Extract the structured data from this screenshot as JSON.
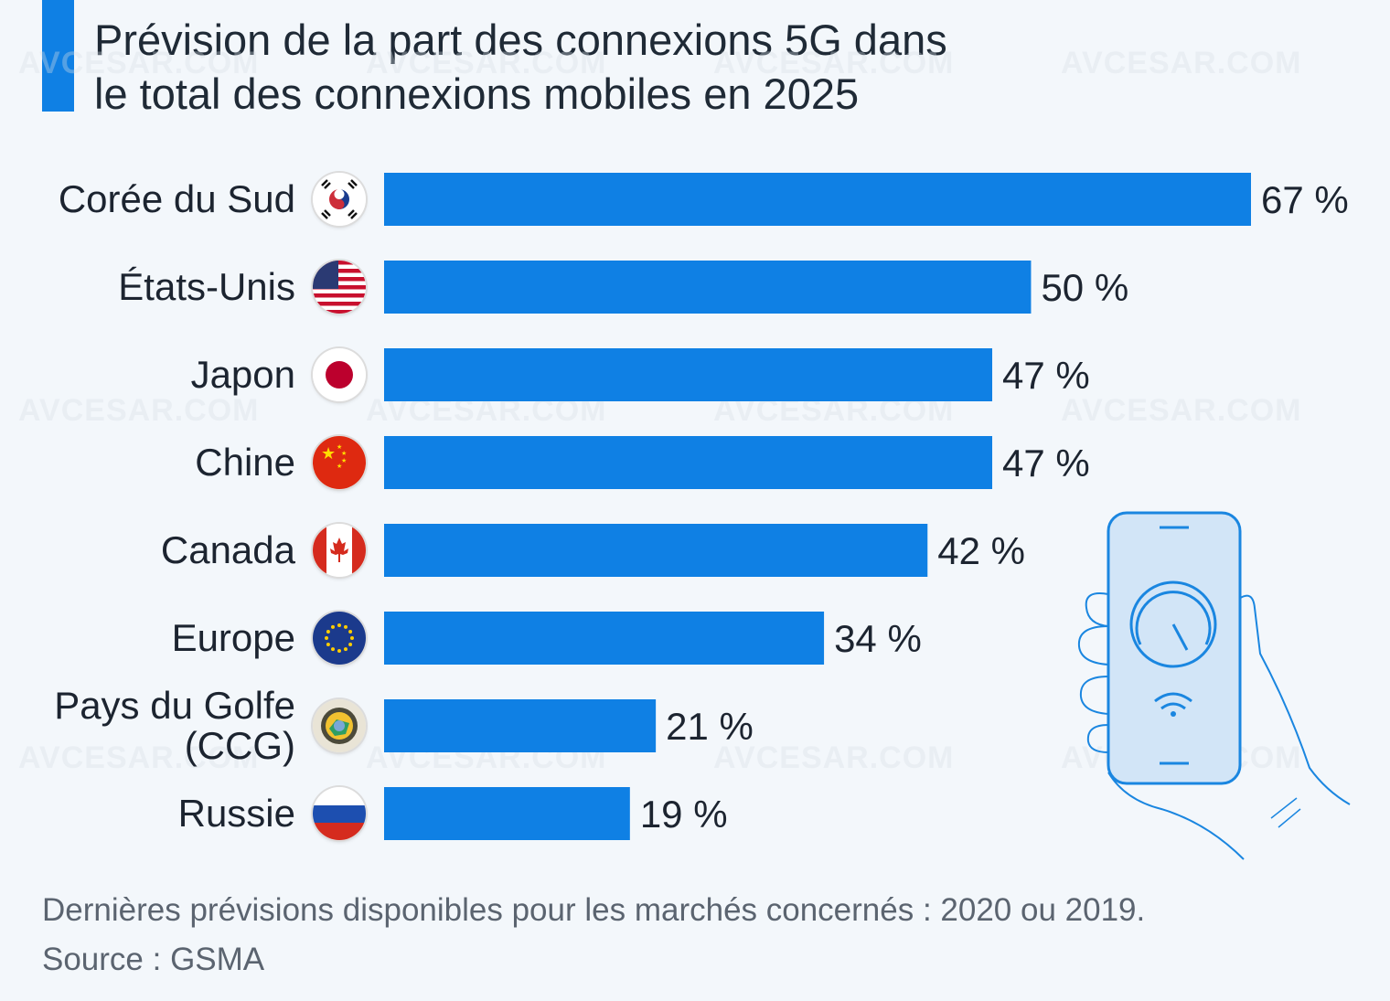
{
  "title": {
    "line1": "Prévision de la part des connexions 5G dans",
    "line2": "le total des connexions mobiles en 2025"
  },
  "watermark": "AVCESAR.COM",
  "chart_data": {
    "type": "bar",
    "orientation": "horizontal",
    "title": "Prévision de la part des connexions 5G dans le total des connexions mobiles en 2025",
    "categories": [
      "Corée du Sud",
      "États-Unis",
      "Japon",
      "Chine",
      "Canada",
      "Europe",
      "Pays du Golfe (CCG)",
      "Russie"
    ],
    "category_lines": [
      [
        "Corée du Sud"
      ],
      [
        "États-Unis"
      ],
      [
        "Japon"
      ],
      [
        "Chine"
      ],
      [
        "Canada"
      ],
      [
        "Europe"
      ],
      [
        "Pays du Golfe",
        "(CCG)"
      ],
      [
        "Russie"
      ]
    ],
    "values": [
      67,
      50,
      47,
      47,
      42,
      34,
      21,
      19
    ],
    "value_labels": [
      "67 %",
      "50 %",
      "47 %",
      "47 %",
      "42 %",
      "34 %",
      "21 %",
      "19 %"
    ],
    "flags": [
      "south-korea-flag-icon",
      "usa-flag-icon",
      "japan-flag-icon",
      "china-flag-icon",
      "canada-flag-icon",
      "eu-flag-icon",
      "gcc-flag-icon",
      "russia-flag-icon"
    ],
    "unit": "%",
    "xlim": [
      0,
      67
    ],
    "bar_color": "#0f80e4"
  },
  "footer": {
    "note": "Dernières prévisions disponibles pour les marchés concernés : 2020 ou 2019.",
    "source": "Source : GSMA"
  },
  "illustration": "phone-in-hand-icon",
  "colors": {
    "accent": "#0f80e4",
    "background": "#f3f7fb",
    "text": "#1c2430",
    "muted": "#5b6470"
  }
}
